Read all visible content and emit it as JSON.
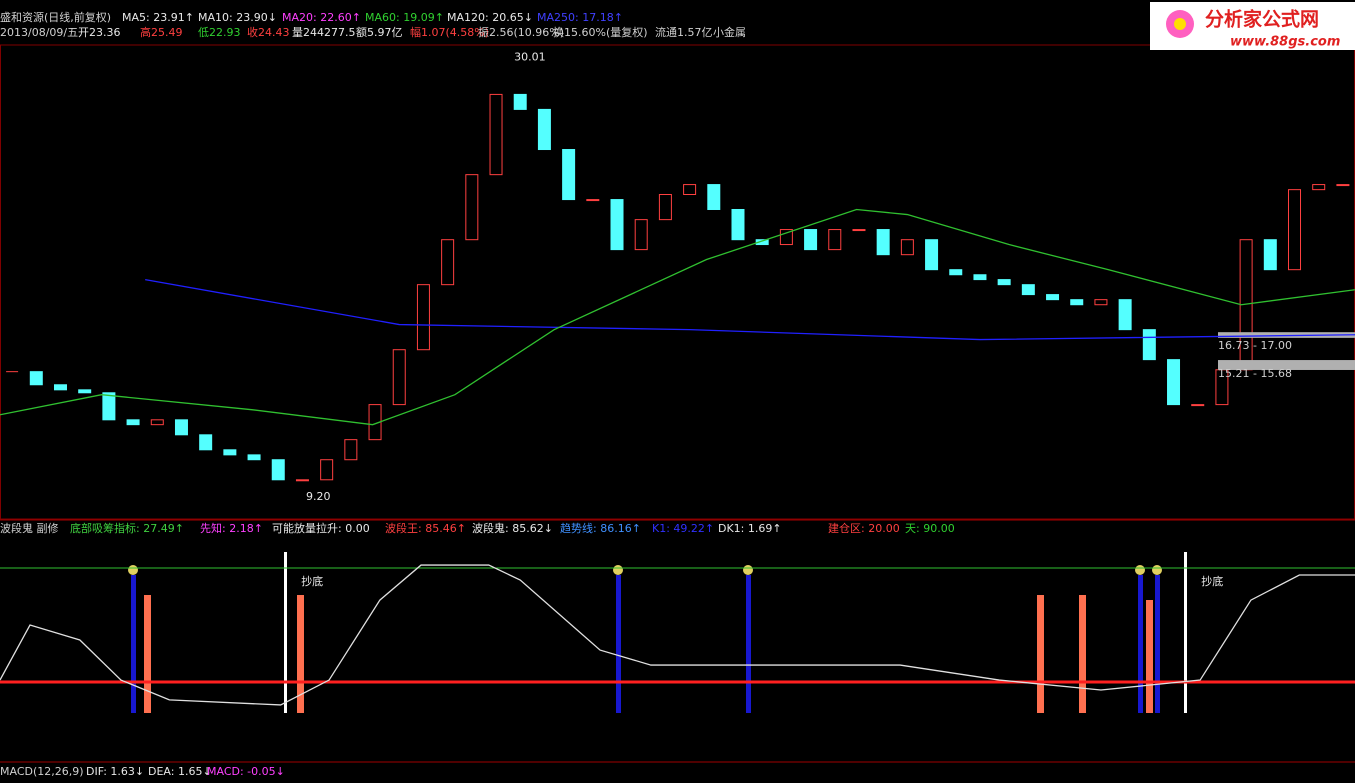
{
  "header": {
    "title_row": [
      "盛和资源(日线,前复权)",
      "MA5: 23.91↑",
      "MA10: 23.90↓",
      "MA20: 22.60↑",
      "MA60: 19.09↑",
      "MA120: 20.65↓",
      "MA250: 17.18↑"
    ],
    "info_row": [
      "2013/08/09/五",
      "开23.36",
      "高25.49",
      "低22.93",
      "收24.43",
      "量244277.5",
      "额5.97亿",
      "幅1.07(4.58%)",
      "振2.56(10.96%)",
      "换15.60%(量复权)",
      "流通1.57亿",
      "小金属"
    ]
  },
  "logo": {
    "name": "分析家公式网",
    "url": "www.88gs.com"
  },
  "chart_data": [
    {
      "type": "candlestick",
      "xlim": [
        -0.5,
        55.5
      ],
      "ylim": [
        8.2,
        30.6
      ],
      "closes": [
        15.13,
        14.51,
        14.27,
        14.13,
        12.85,
        12.62,
        12.85,
        12.14,
        11.43,
        11.19,
        10.96,
        10.01,
        10.01,
        10.96,
        11.91,
        13.57,
        16.17,
        19.25,
        21.38,
        24.46,
        28.26,
        27.55,
        25.65,
        23.28,
        23.28,
        20.91,
        22.33,
        23.52,
        23.99,
        22.81,
        21.38,
        21.15,
        21.86,
        20.91,
        21.86,
        21.86,
        20.67,
        21.38,
        19.96,
        19.72,
        19.49,
        19.25,
        18.78,
        18.54,
        18.3,
        18.54,
        17.12,
        15.7,
        13.57,
        13.57,
        15.22,
        21.38,
        19.96,
        23.75,
        23.99,
        23.99
      ],
      "series": [
        {
          "color": "#2020ff",
          "x": [
            5.5,
            16,
            28,
            40,
            55.5
          ],
          "values": [
            19.49,
            17.36,
            17.12,
            16.65,
            16.88
          ]
        },
        {
          "color": "#30c030",
          "x": [
            -0.5,
            3.7,
            9.9,
            14.9,
            18.3,
            22.4,
            28.7,
            34.9,
            37,
            41.2,
            45.3,
            50.8,
            55.5
          ],
          "values": [
            13.09,
            14.04,
            13.33,
            12.62,
            14.04,
            17.12,
            20.44,
            22.81,
            22.57,
            21.15,
            19.96,
            18.3,
            19.01
          ]
        }
      ],
      "annotations": [
        {
          "text": "30.01",
          "x": 20.5,
          "y": 30.01
        },
        {
          "text": "9.20",
          "x": 11.9,
          "y": 9.2
        }
      ],
      "zones": [
        {
          "label": "16.73 - 17.00",
          "range": [
            16.73,
            17.0
          ]
        },
        {
          "label": "15.21 - 15.68",
          "range": [
            15.21,
            15.68
          ]
        }
      ]
    },
    {
      "type": "line",
      "xlim": [
        -0.5,
        55.5
      ],
      "ylim": [
        -27.9,
        107.2
      ],
      "labels": [
        "波段鬼 副修",
        "底部吸筹指标: 27.49↑",
        "先知: 2.18↑",
        "可能放量拉升: 0.00",
        "波段王: 85.46↑",
        "波段鬼: 85.62↓",
        "趋势线: 86.16↑",
        "K1: 49.22↑",
        "DK1: 1.69↑",
        "建仓区: 20.00",
        "天: 90.00"
      ],
      "ref_lines": [
        {
          "value": 20,
          "color": "#ff2020"
        },
        {
          "value": 90,
          "color": "#30c030"
        }
      ],
      "series": [
        {
          "color": "#e0e0e0",
          "x": [
            -0.5,
            0.74,
            2.8,
            4.5,
            6.5,
            11.1,
            13.1,
            15.2,
            16.9,
            19.7,
            21,
            24.3,
            26.4,
            32.6,
            36.7,
            40.8,
            45,
            49.1,
            51.2,
            53.2,
            55.5
          ],
          "values": [
            21.2,
            55,
            45.8,
            21.2,
            9,
            5.9,
            21.2,
            70.3,
            91.8,
            91.8,
            82.6,
            39.6,
            30.4,
            30.4,
            30.4,
            21.2,
            15.1,
            21.2,
            70.3,
            85.7,
            85.7
          ]
        }
      ],
      "annotations": [
        {
          "text": "抄底",
          "x": 11.7,
          "y": 81.4
        },
        {
          "text": "抄底",
          "x": 48.9,
          "y": 81.4
        }
      ]
    }
  ],
  "footer": [
    "MACD(12,26,9)",
    "DIF: 1.63↓",
    "DEA: 1.65↓",
    "MACD: -0.05↓"
  ]
}
